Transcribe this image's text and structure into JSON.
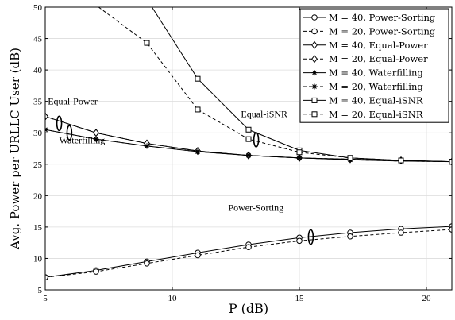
{
  "chart_data": {
    "type": "line",
    "xlabel": "P (dB)",
    "ylabel": "Avg. Power per URLLC User (dB)",
    "xlim": [
      5,
      21
    ],
    "ylim": [
      5,
      50
    ],
    "xticks": [
      5,
      10,
      15,
      20
    ],
    "yticks": [
      5,
      10,
      15,
      20,
      25,
      30,
      35,
      40,
      45,
      50
    ],
    "grid": true,
    "legend_position": "top-right",
    "series": [
      {
        "name": "M = 40, Power-Sorting",
        "marker": "circle",
        "dash": "solid",
        "x": [
          5,
          7,
          9,
          11,
          13,
          15,
          17,
          19,
          21
        ],
        "y": [
          7.0,
          8.1,
          9.5,
          10.9,
          12.2,
          13.3,
          14.1,
          14.7,
          15.1
        ]
      },
      {
        "name": "M = 20, Power-Sorting",
        "marker": "circle",
        "dash": "dashed",
        "x": [
          5,
          7,
          9,
          11,
          13,
          15,
          17,
          19,
          21
        ],
        "y": [
          7.0,
          7.9,
          9.2,
          10.5,
          11.8,
          12.8,
          13.5,
          14.1,
          14.6
        ]
      },
      {
        "name": "M = 40, Equal-Power",
        "marker": "diamond",
        "dash": "solid",
        "x": [
          5,
          7,
          9,
          11,
          13,
          15,
          17,
          19,
          21
        ],
        "y": [
          32.6,
          30.0,
          28.3,
          27.1,
          26.4,
          26.0,
          25.8,
          25.6,
          25.4
        ]
      },
      {
        "name": "M = 20, Equal-Power",
        "marker": "diamond",
        "dash": "dashed",
        "x": [
          5,
          7,
          9,
          11,
          13,
          15,
          17,
          19,
          21
        ],
        "y": [
          32.6,
          30.0,
          28.3,
          27.1,
          26.4,
          26.0,
          25.8,
          25.6,
          25.4
        ]
      },
      {
        "name": "M = 40, Waterfilling",
        "marker": "star",
        "dash": "solid",
        "x": [
          5,
          7,
          9,
          11,
          13,
          15,
          17,
          19,
          21
        ],
        "y": [
          30.5,
          29.0,
          27.9,
          27.0,
          26.4,
          26.0,
          25.7,
          25.5,
          25.4
        ]
      },
      {
        "name": "M = 20, Waterfilling",
        "marker": "star",
        "dash": "dashed",
        "x": [
          5,
          7,
          9,
          11,
          13,
          15,
          17,
          19,
          21
        ],
        "y": [
          30.5,
          29.0,
          27.9,
          27.0,
          26.4,
          26.0,
          25.7,
          25.5,
          25.4
        ]
      },
      {
        "name": "M = 40, Equal-iSNR",
        "marker": "square",
        "dash": "solid",
        "x": [
          9.2,
          11,
          13,
          15,
          17,
          19,
          21
        ],
        "y": [
          50,
          38.6,
          30.5,
          27.2,
          26.0,
          25.6,
          25.4
        ]
      },
      {
        "name": "M = 20, Equal-iSNR",
        "marker": "square",
        "dash": "dashed",
        "x": [
          7.1,
          9,
          11,
          13,
          15,
          17,
          19,
          21
        ],
        "y": [
          50,
          44.3,
          33.7,
          29.0,
          26.9,
          26.0,
          25.6,
          25.4
        ]
      }
    ],
    "annotations": [
      {
        "text": "Equal-Power",
        "x": 5.1,
        "y": 34.5
      },
      {
        "text": "Waterfilling",
        "x": 5.55,
        "y": 28.3
      },
      {
        "text": "Equal-iSNR",
        "x": 12.7,
        "y": 32.5
      },
      {
        "text": "Power-Sorting",
        "x": 12.2,
        "y": 17.6
      }
    ],
    "colors": {
      "line": "#000000",
      "grid": "#dcdcdc",
      "background": "#ffffff"
    }
  }
}
